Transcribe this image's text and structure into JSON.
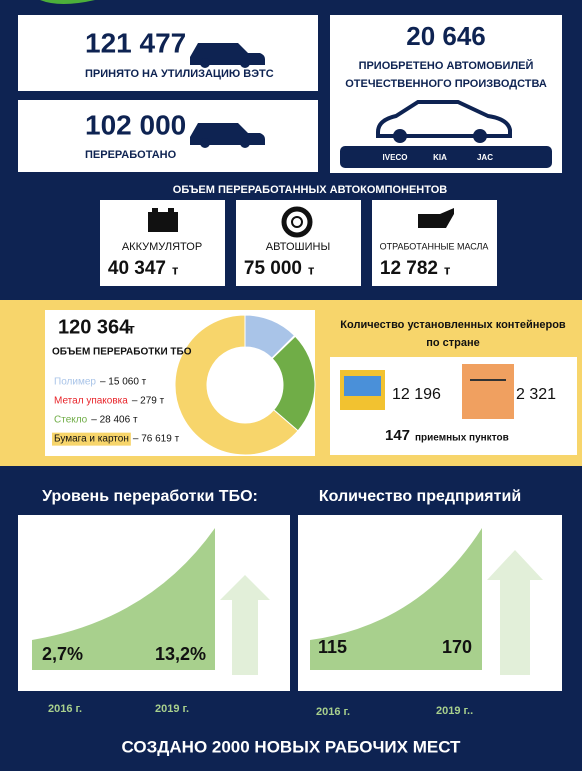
{
  "recycling": {
    "accepted": {
      "value": "121 477",
      "label": "ПРИНЯТО НА УТИЛИЗАЦИЮ ВЭТС"
    },
    "processed": {
      "value": "102 000",
      "label": "ПЕРЕРАБОТАНО"
    },
    "purchased": {
      "value": "20 646",
      "label1": "ПРИОБРЕТЕНО АВТОМОБИЛЕЙ",
      "label2": "ОТЕЧЕСТВЕННОГО ПРОИЗВОДСТВА",
      "brands": [
        "IVECO",
        "KIA",
        "JAC"
      ]
    }
  },
  "components": {
    "title": "ОБЪЕМ ПЕРЕРАБОТАННЫХ АВТОКОМПОНЕНТОВ",
    "items": [
      {
        "label": "АККУМУЛЯТОР",
        "value": "40 347",
        "unit": "т"
      },
      {
        "label": "АВТОШИНЫ",
        "value": "75 000",
        "unit": "т"
      },
      {
        "label": "ОТРАБОТАННЫЕ МАСЛА",
        "value": "12 782",
        "unit": "т"
      }
    ]
  },
  "waste": {
    "total": "120 364",
    "unit": "т",
    "title": "ОБЪЕМ ПЕРЕРАБОТКИ ТБО",
    "items": [
      {
        "name": "Полимер",
        "value": 15060,
        "value_label": "– 15 060 т",
        "color": "#a9c4e8"
      },
      {
        "name": "Метал упаковка",
        "value": 279,
        "value_label": "– 279 т",
        "color": "#e8242a"
      },
      {
        "name": "Стекло",
        "value": 28406,
        "value_label": "– 28 406 т",
        "color": "#70ad47"
      },
      {
        "name": "Бумага и картон",
        "value": 76619,
        "value_label": "– 76 619 т",
        "color": "#f7d56b"
      }
    ]
  },
  "containers": {
    "title1": "Количество установленных контейнеров",
    "title2": "по стране",
    "mixed": "12 196",
    "large": "2 321",
    "points": "147",
    "points_label": "приемных пунктов"
  },
  "levels": {
    "title": "Уровень переработки ТБО:",
    "start": "2,7%",
    "end": "13,2%",
    "year1": "2016 г.",
    "year2": "2019 г."
  },
  "enterprises": {
    "title": "Количество предприятий",
    "start": "115",
    "end": "170",
    "year1": "2016 г.",
    "year2": "2019 г.."
  },
  "footer": "СОЗДАНО 2000 НОВЫХ РАБОЧИХ МЕСТ"
}
